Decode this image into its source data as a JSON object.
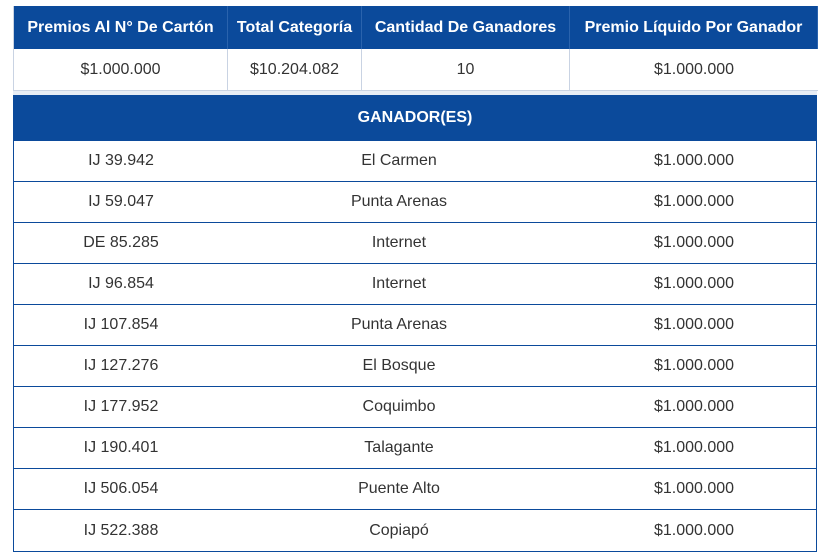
{
  "summary": {
    "headers": [
      "Premios Al N° De Cartón",
      "Total Categoría",
      "Cantidad De Ganadores",
      "Premio Líquido Por Ganador"
    ],
    "values": [
      "$1.000.000",
      "$10.204.082",
      "10",
      "$1.000.000"
    ]
  },
  "winners": {
    "title": "GANADOR(ES)",
    "rows": [
      {
        "carton": "IJ 39.942",
        "location": "El Carmen",
        "prize": "$1.000.000"
      },
      {
        "carton": "IJ 59.047",
        "location": "Punta Arenas",
        "prize": "$1.000.000"
      },
      {
        "carton": "DE 85.285",
        "location": "Internet",
        "prize": "$1.000.000"
      },
      {
        "carton": "IJ 96.854",
        "location": "Internet",
        "prize": "$1.000.000"
      },
      {
        "carton": "IJ 107.854",
        "location": "Punta Arenas",
        "prize": "$1.000.000"
      },
      {
        "carton": "IJ 127.276",
        "location": "El Bosque",
        "prize": "$1.000.000"
      },
      {
        "carton": "IJ 177.952",
        "location": "Coquimbo",
        "prize": "$1.000.000"
      },
      {
        "carton": "IJ 190.401",
        "location": "Talagante",
        "prize": "$1.000.000"
      },
      {
        "carton": "IJ 506.054",
        "location": "Puente Alto",
        "prize": "$1.000.000"
      },
      {
        "carton": "IJ 522.388",
        "location": "Copiapó",
        "prize": "$1.000.000"
      }
    ]
  },
  "colors": {
    "header_bg": "#0b4a9b",
    "header_text": "#ffffff",
    "cell_text": "#333333",
    "grid_line": "#c9d3e3"
  }
}
